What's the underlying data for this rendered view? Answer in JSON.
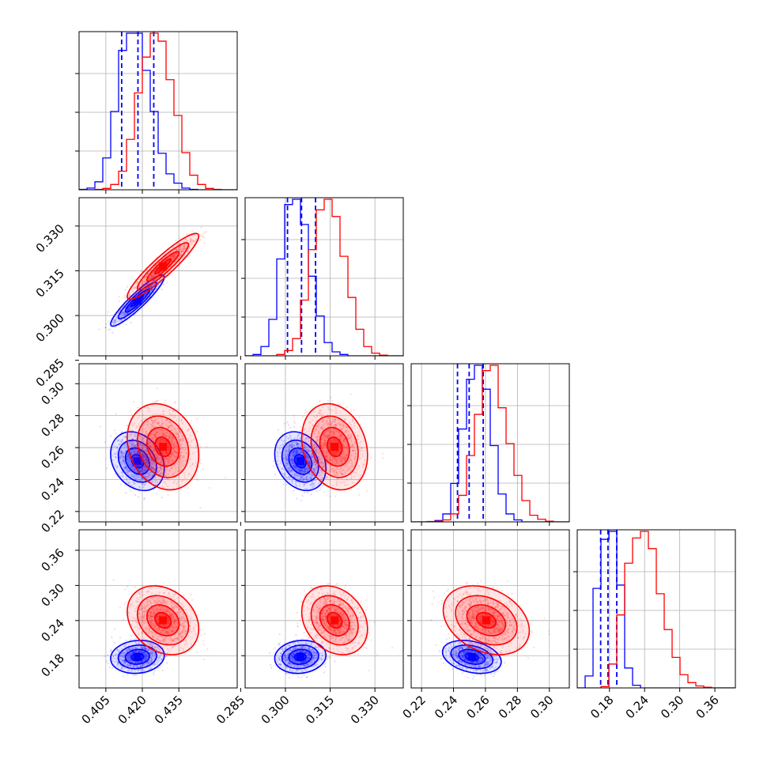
{
  "chart_data": {
    "type": "corner",
    "title": "",
    "colors": {
      "blue": "#0000ff",
      "red": "#ff0000",
      "grid": "#b0b0b0",
      "axis": "#000000"
    },
    "parameters": [
      {
        "ticks": [
          0.405,
          0.42,
          0.435
        ],
        "tick_labels": [
          "0.405",
          "0.420",
          "0.435"
        ],
        "range": [
          0.394,
          0.459
        ]
      },
      {
        "ticks": [
          0.285,
          0.3,
          0.315,
          0.33
        ],
        "tick_labels": [
          "0.285",
          "0.300",
          "0.315",
          "0.330"
        ],
        "range": [
          0.2865,
          0.3395
        ]
      },
      {
        "ticks": [
          0.22,
          0.24,
          0.26,
          0.28,
          0.3
        ],
        "tick_labels": [
          "0.22",
          "0.24",
          "0.26",
          "0.28",
          "0.30"
        ],
        "range": [
          0.2135,
          0.3125
        ]
      },
      {
        "ticks": [
          0.18,
          0.24,
          0.3,
          0.36
        ],
        "tick_labels": [
          "0.18",
          "0.24",
          "0.30",
          "0.36"
        ],
        "range": [
          0.125,
          0.395
        ]
      }
    ],
    "series": [
      {
        "color": "blue",
        "histograms": [
          [
            0.5,
            2.5,
            12,
            48,
            118,
            210,
            236,
            236,
            180,
            118,
            55,
            24,
            10,
            2.5,
            0.5,
            0,
            0,
            0,
            0,
            0
          ],
          [
            0,
            2,
            14,
            55,
            146,
            228,
            236,
            198,
            120,
            60,
            20,
            6,
            2,
            0,
            0,
            0,
            0,
            0,
            0,
            0
          ],
          [
            0,
            0,
            0,
            2,
            12,
            58,
            140,
            215,
            236,
            200,
            115,
            42,
            12,
            3,
            0,
            0,
            0,
            0,
            0,
            0
          ],
          [
            0,
            18,
            150,
            224,
            236,
            155,
            30,
            4,
            0,
            0,
            0,
            0,
            0,
            0,
            0,
            0,
            0,
            0,
            0,
            0
          ]
        ],
        "quantiles": [
          [
            0.4115,
            0.4182,
            0.4247
          ],
          [
            0.3007,
            0.3054,
            0.3101
          ],
          [
            0.2425,
            0.2498,
            0.2586
          ],
          [
            0.165,
            0.1775,
            0.1925
          ]
        ],
        "means": [
          0.418,
          0.305,
          0.2515,
          0.178
        ],
        "sds": [
          0.0045,
          0.0035,
          0.0075,
          0.0115
        ],
        "corr": [
          [
            1,
            0.92,
            -0.25,
            0.1
          ],
          [
            0.92,
            1,
            -0.25,
            0.1
          ],
          [
            -0.25,
            -0.25,
            1,
            -0.3
          ],
          [
            0.1,
            0.1,
            -0.3,
            1
          ]
        ]
      },
      {
        "color": "red",
        "histograms": [
          [
            0,
            0,
            0.5,
            2,
            8,
            28,
            76,
            146,
            200,
            236,
            224,
            166,
            112,
            56,
            22,
            8,
            2,
            0.5,
            0,
            0
          ],
          [
            0,
            0,
            0,
            0,
            2,
            8,
            26,
            84,
            160,
            220,
            236,
            210,
            150,
            88,
            40,
            14,
            4,
            1,
            0,
            0
          ],
          [
            0,
            0,
            0.5,
            1,
            3,
            12,
            40,
            100,
            162,
            228,
            236,
            172,
            118,
            70,
            32,
            10,
            4,
            1,
            0,
            0
          ],
          [
            0,
            0,
            0,
            2,
            36,
            110,
            188,
            226,
            236,
            210,
            142,
            88,
            46,
            20,
            8,
            3,
            1,
            0,
            0,
            0
          ]
        ],
        "quantiles": [],
        "means": [
          0.4285,
          0.3165,
          0.2605,
          0.2405
        ],
        "sds": [
          0.006,
          0.0045,
          0.011,
          0.024
        ],
        "corr": [
          [
            1,
            0.92,
            -0.2,
            -0.25
          ],
          [
            0.92,
            1,
            -0.2,
            -0.25
          ],
          [
            -0.2,
            -0.2,
            1,
            -0.3
          ],
          [
            -0.25,
            -0.25,
            -0.3,
            1
          ]
        ]
      }
    ],
    "grid": true,
    "legend": "none"
  }
}
